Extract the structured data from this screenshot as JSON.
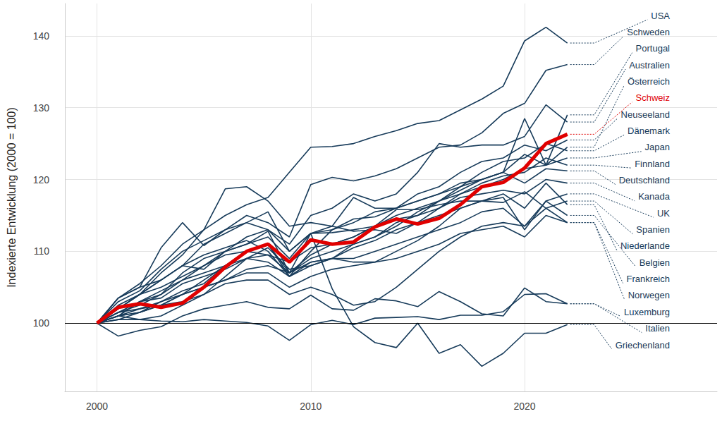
{
  "chart_data": {
    "type": "line",
    "ylabel": "Indexierte Entwicklung (2000 = 100)",
    "x": [
      2000,
      2001,
      2002,
      2003,
      2004,
      2005,
      2006,
      2007,
      2008,
      2009,
      2010,
      2011,
      2012,
      2013,
      2014,
      2015,
      2016,
      2017,
      2018,
      2019,
      2020,
      2021,
      2022
    ],
    "xlim": [
      1998.5,
      2029
    ],
    "xticks": [
      2000,
      2010,
      2020
    ],
    "ylim": [
      90.5,
      144.5
    ],
    "yticks": [
      100,
      110,
      120,
      130,
      140
    ],
    "grid": true,
    "series": [
      {
        "name": "USA",
        "color": "#173b5a",
        "values": [
          100,
          103.5,
          105.5,
          108,
          111,
          113,
          115,
          116.5,
          117.5,
          121,
          124.5,
          124.6,
          125,
          126,
          126.8,
          127.8,
          128.2,
          129.7,
          131.2,
          133,
          139.3,
          141.2,
          139
        ]
      },
      {
        "name": "Schweden",
        "color": "#173b5a",
        "values": [
          100,
          103,
          104.5,
          107.5,
          110,
          111.5,
          113,
          115,
          114,
          112,
          119.3,
          120.3,
          119.8,
          120.5,
          121.5,
          123,
          124.5,
          124.8,
          126.5,
          129.2,
          130.6,
          135.2,
          136
        ]
      },
      {
        "name": "Portugal",
        "color": "#173b5a",
        "values": [
          100,
          101,
          101.5,
          102.5,
          104,
          105,
          106,
          107.5,
          108,
          107,
          108.5,
          109,
          111,
          112,
          114,
          115,
          117,
          118.5,
          120,
          121,
          128.5,
          122,
          129
        ]
      },
      {
        "name": "Australien",
        "color": "#173b5a",
        "values": [
          100,
          103.5,
          105,
          110.5,
          114,
          110.8,
          113,
          114,
          113,
          111,
          115,
          116,
          118,
          117,
          118,
          121,
          125,
          124.5,
          124.8,
          124.8,
          126,
          130.4,
          128
        ]
      },
      {
        "name": "Österreich",
        "color": "#173b5a",
        "values": [
          100,
          101,
          103,
          104,
          106,
          108,
          110,
          111,
          112,
          109,
          112.5,
          113,
          114,
          115.5,
          116,
          117,
          118,
          119,
          120,
          121,
          123.5,
          122,
          124.5
        ]
      },
      {
        "name": "Schweiz",
        "color": "#e00000",
        "values": [
          100,
          102.2,
          102.7,
          102.2,
          102.8,
          105,
          107.8,
          110,
          111,
          108.5,
          111.6,
          111,
          111.3,
          113.4,
          114.5,
          113.8,
          114.6,
          116.5,
          119,
          119.6,
          121.6,
          125,
          126.3
        ]
      },
      {
        "name": "Neuseeland",
        "color": "#173b5a",
        "values": [
          100,
          102,
          104,
          107,
          109.5,
          113,
          118.7,
          119,
          117,
          113.5,
          114,
          113.5,
          117.5,
          116,
          116,
          118,
          119,
          121,
          122.5,
          123,
          124.8,
          124,
          125.5
        ]
      },
      {
        "name": "Dänemark",
        "color": "#173b5a",
        "values": [
          100,
          100.5,
          101.5,
          103,
          104,
          106,
          108,
          110,
          111,
          107,
          109,
          110,
          111,
          112,
          113.5,
          115.5,
          117,
          119,
          121,
          122.5,
          123,
          125,
          124
        ]
      },
      {
        "name": "Japan",
        "color": "#173b5a",
        "values": [
          100,
          101,
          103,
          104.5,
          106,
          107,
          108,
          109,
          109.5,
          108.5,
          110.5,
          111,
          112,
          113.5,
          115,
          116,
          117,
          118,
          119,
          120,
          121.5,
          122,
          123
        ]
      },
      {
        "name": "Finnland",
        "color": "#173b5a",
        "values": [
          100,
          103.5,
          105,
          106,
          108,
          111,
          112.5,
          114,
          115.5,
          110,
          112.5,
          113.5,
          112.8,
          113,
          112.5,
          114,
          116,
          118,
          119.5,
          120.5,
          121,
          123,
          122
        ]
      },
      {
        "name": "Deutschland",
        "color": "#173b5a",
        "values": [
          100,
          101.5,
          102,
          103,
          104.5,
          105.5,
          108,
          110,
          111,
          106.5,
          110,
          113,
          114.5,
          114.8,
          116,
          117,
          118,
          119.5,
          120,
          121,
          119.5,
          121.5,
          121.2
        ]
      },
      {
        "name": "Kanada",
        "color": "#173b5a",
        "values": [
          100,
          102,
          104,
          105,
          106.5,
          108,
          109.5,
          110,
          109.5,
          107,
          109.5,
          111,
          112,
          113.5,
          114.5,
          115,
          116,
          117.5,
          118,
          118.5,
          118,
          120,
          119.5
        ]
      },
      {
        "name": "UK",
        "color": "#173b5a",
        "values": [
          100,
          102.5,
          104,
          106,
          108,
          109.5,
          110.5,
          111.5,
          110,
          106.5,
          108,
          109,
          110.5,
          111.5,
          113,
          114,
          115,
          116,
          117,
          117.5,
          113,
          117,
          118
        ]
      },
      {
        "name": "Spanien",
        "color": "#173b5a",
        "values": [
          100,
          101,
          102,
          102.5,
          103,
          104,
          105.5,
          106,
          106,
          104,
          105,
          104,
          102.5,
          103,
          105,
          107.5,
          110,
          112,
          113.5,
          114,
          113.5,
          116,
          117
        ]
      },
      {
        "name": "Niederlande",
        "color": "#173b5a",
        "values": [
          100,
          101,
          100.5,
          101,
          102.5,
          104,
          106.5,
          109,
          110.5,
          107.5,
          108,
          109,
          108.5,
          108.5,
          110,
          111.5,
          113.5,
          116,
          117,
          118,
          116,
          119.5,
          116.5
        ]
      },
      {
        "name": "Belgien",
        "color": "#173b5a",
        "values": [
          100,
          101.5,
          103,
          103.5,
          105.5,
          106.5,
          107.5,
          109,
          108.5,
          106.5,
          108.5,
          109,
          109,
          110,
          111,
          112,
          113,
          114,
          115.5,
          116,
          113.5,
          117,
          115
        ]
      },
      {
        "name": "Frankreich",
        "color": "#173b5a",
        "values": [
          100,
          101,
          101.5,
          102.5,
          104,
          105,
          106,
          107,
          107,
          105,
          106.5,
          107.5,
          108,
          108.5,
          109,
          110,
          111,
          112.5,
          113,
          113.5,
          112,
          115,
          114
        ]
      },
      {
        "name": "Norwegen",
        "color": "#173b5a",
        "values": [
          100,
          101.5,
          102.5,
          104,
          107,
          109,
          110,
          111,
          112.8,
          107,
          112.5,
          112.6,
          113,
          113.5,
          115.8,
          115.8,
          116.5,
          117,
          117,
          116.8,
          118.3,
          116,
          114
        ]
      },
      {
        "name": "Luxemburg",
        "color": "#173b5a",
        "values": [
          100,
          98.2,
          99,
          99.5,
          101,
          102,
          102.5,
          103,
          102.2,
          102,
          103.9,
          102,
          101.8,
          103.4,
          103.1,
          102.3,
          104.4,
          103,
          101.3,
          101,
          104.9,
          103,
          102.7
        ]
      },
      {
        "name": "Italien",
        "color": "#173b5a",
        "values": [
          100,
          100.5,
          100.5,
          100.3,
          100.2,
          100.5,
          100.3,
          100.1,
          99.6,
          97.6,
          99.8,
          100.4,
          99.8,
          100.7,
          100.8,
          100.9,
          100.5,
          101.1,
          101.1,
          101.6,
          104,
          104.1,
          102.7
        ]
      },
      {
        "name": "Griechenland",
        "color": "#173b5a",
        "values": [
          100,
          102,
          104,
          106,
          108,
          107.5,
          110,
          112,
          113,
          110,
          112.5,
          104.8,
          99.5,
          97.3,
          96.6,
          100,
          95.8,
          97,
          94,
          95.8,
          98.6,
          98.6,
          99.8
        ]
      }
    ]
  }
}
